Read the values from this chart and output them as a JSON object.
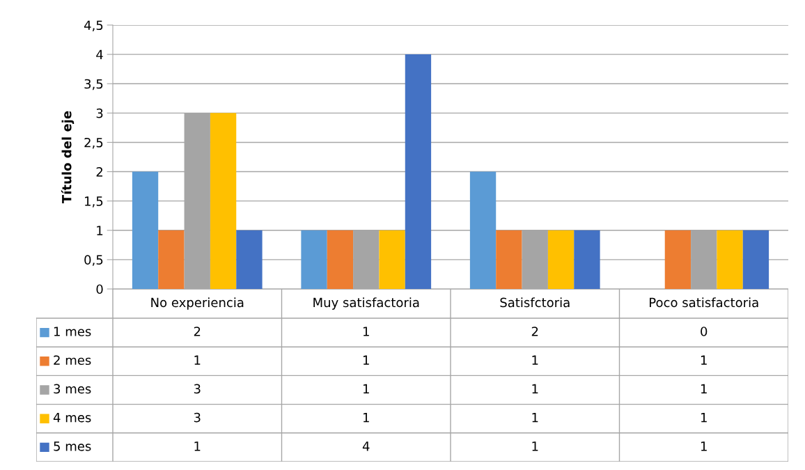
{
  "chart_data": {
    "type": "bar",
    "ylabel": "Título del eje",
    "categories": [
      "No experiencia",
      "Muy satisfactoria",
      "Satisfctoria",
      "Poco satisfactoria"
    ],
    "series": [
      {
        "name": "1 mes",
        "color": "#5b9bd5",
        "values": [
          2,
          1,
          2,
          0
        ]
      },
      {
        "name": "2 mes",
        "color": "#ed7d31",
        "values": [
          1,
          1,
          1,
          1
        ]
      },
      {
        "name": "3 mes",
        "color": "#a5a5a5",
        "values": [
          3,
          1,
          1,
          1
        ]
      },
      {
        "name": "4 mes",
        "color": "#ffc000",
        "values": [
          3,
          1,
          1,
          1
        ]
      },
      {
        "name": "5 mes",
        "color": "#4472c4",
        "values": [
          1,
          4,
          1,
          1
        ]
      }
    ],
    "ylim": [
      0,
      4.5
    ],
    "yticks": [
      0,
      {
        "value": 0.5,
        "label": "0,5"
      },
      1,
      {
        "value": 1.5,
        "label": "1,5"
      },
      2,
      {
        "value": 2.5,
        "label": "2,5"
      },
      3,
      {
        "value": 3.5,
        "label": "3,5"
      },
      4,
      {
        "value": 4.5,
        "label": "4,5"
      }
    ],
    "grid": "y",
    "data_labels": true,
    "legend": "bottom"
  }
}
